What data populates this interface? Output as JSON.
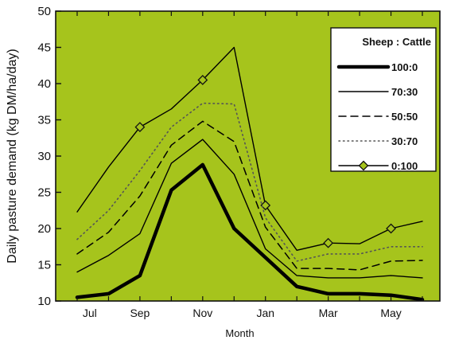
{
  "chart_data": {
    "type": "line",
    "xlabel": "Month",
    "ylabel": "Daily pasture demand (kg DM/ha/day)",
    "ylim": [
      10,
      50
    ],
    "yticks": [
      10,
      15,
      20,
      25,
      30,
      35,
      40,
      45,
      50
    ],
    "xlim": [
      0,
      11
    ],
    "xtick_labels": [
      {
        "label": "Jul",
        "x": 0.4
      },
      {
        "label": "Sep",
        "x": 2.0
      },
      {
        "label": "Nov",
        "x": 4.0
      },
      {
        "label": "Jan",
        "x": 6.0
      },
      {
        "label": "Mar",
        "x": 8.0
      },
      {
        "label": "May",
        "x": 10.0
      }
    ],
    "background_color": "#a6c41c",
    "legend": {
      "title": "Sheep : Cattle",
      "placement": "top-right"
    },
    "series": [
      {
        "name": "100:0",
        "style": "thick",
        "color": "#000000",
        "x": [
          0,
          1,
          2,
          3,
          4,
          5,
          6,
          7,
          8,
          9,
          10,
          11
        ],
        "y": [
          10.5,
          11,
          13.5,
          25.3,
          28.8,
          20,
          16,
          12,
          11,
          11,
          10.8,
          10.2
        ]
      },
      {
        "name": "70:30",
        "style": "thin",
        "color": "#000000",
        "x": [
          0,
          1,
          2,
          3,
          4,
          5,
          6,
          7,
          8,
          9,
          10,
          11
        ],
        "y": [
          14,
          16.3,
          19.3,
          29,
          32.3,
          27.5,
          17.2,
          13.5,
          13.2,
          13.2,
          13.5,
          13.2
        ]
      },
      {
        "name": "50:50",
        "style": "dashed",
        "color": "#000000",
        "x": [
          0,
          1,
          2,
          3,
          4,
          5,
          6,
          7,
          8,
          9,
          10,
          11
        ],
        "y": [
          16.5,
          19.5,
          24.5,
          31.5,
          34.8,
          32,
          20.2,
          14.5,
          14.5,
          14.3,
          15.5,
          15.6
        ]
      },
      {
        "name": "30:70",
        "style": "dotted",
        "color": "#555555",
        "x": [
          0,
          1,
          2,
          3,
          4,
          5,
          6,
          7,
          8,
          9,
          10,
          11
        ],
        "y": [
          18.5,
          22.5,
          28,
          34,
          37.3,
          37.2,
          21.5,
          15.5,
          16.5,
          16.5,
          17.5,
          17.5
        ]
      },
      {
        "name": "0:100",
        "style": "diamond",
        "color": "#000000",
        "x": [
          0,
          1,
          2,
          3,
          4,
          5,
          6,
          7,
          8,
          9,
          10,
          11
        ],
        "y": [
          22.3,
          28.5,
          34,
          36.5,
          40.5,
          45,
          23.2,
          17,
          18,
          17.9,
          20,
          21
        ],
        "markers_at": [
          2,
          4,
          6,
          8,
          10
        ]
      }
    ]
  }
}
